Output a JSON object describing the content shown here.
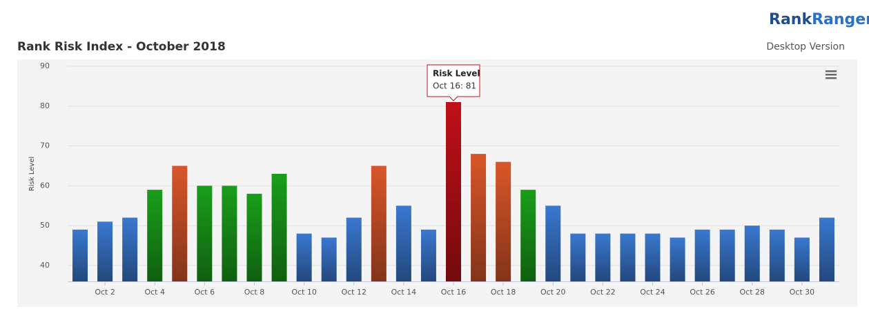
{
  "header": {
    "logo": [
      "Rank",
      "Ranger"
    ],
    "title": "Rank Risk Index - October 2018",
    "subtitle": "Desktop Version"
  },
  "chart_data": {
    "type": "bar",
    "y_label": "Risk Level",
    "categories": [
      null,
      "Oct 2",
      null,
      "Oct 4",
      null,
      "Oct 6",
      null,
      "Oct 8",
      null,
      "Oct 10",
      null,
      "Oct 12",
      null,
      "Oct 14",
      null,
      "Oct 16",
      null,
      "Oct 18",
      null,
      "Oct 20",
      null,
      "Oct 22",
      null,
      "Oct 24",
      null,
      "Oct 26",
      null,
      "Oct 28",
      null,
      "Oct 30",
      null
    ],
    "values": [
      49,
      51,
      52,
      59,
      65,
      60,
      60,
      58,
      63,
      48,
      47,
      52,
      65,
      55,
      49,
      81,
      68,
      66,
      59,
      55,
      48,
      48,
      48,
      48,
      47,
      49,
      49,
      50,
      49,
      47,
      52
    ],
    "colors": [
      "#3a78d0",
      "#3a78d0",
      "#3a78d0",
      "#1a9e1a",
      "#d9562a",
      "#1a9e1a",
      "#1a9e1a",
      "#1a9e1a",
      "#1a9e1a",
      "#3a78d0",
      "#3a78d0",
      "#3a78d0",
      "#d9562a",
      "#3a78d0",
      "#3a78d0",
      "#c01018",
      "#d9562a",
      "#d9562a",
      "#1a9e1a",
      "#3a78d0",
      "#3a78d0",
      "#3a78d0",
      "#3a78d0",
      "#3a78d0",
      "#3a78d0",
      "#3a78d0",
      "#3a78d0",
      "#3a78d0",
      "#3a78d0",
      "#3a78d0",
      "#3a78d0"
    ],
    "ylim": [
      36,
      90
    ],
    "yticks": [
      40,
      50,
      60,
      70,
      80,
      90
    ],
    "grid": true,
    "tooltip": {
      "title": "Risk Level",
      "text": "Oct 16: 81"
    }
  }
}
